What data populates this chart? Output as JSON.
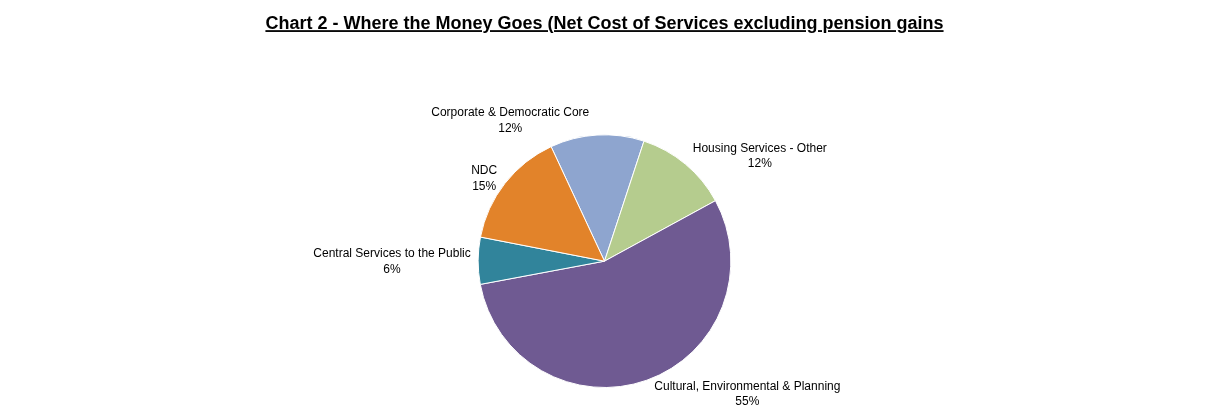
{
  "chart_data": {
    "type": "pie",
    "title": "Chart 2 - Where the Money Goes (Net Cost of Services excluding pension gains",
    "categories": [
      "Corporate & Democratic Core",
      "Housing Services - Other",
      "Cultural, Environmental & Planning",
      "Central Services to the Public",
      "NDC"
    ],
    "values": [
      12,
      12,
      55,
      6,
      15
    ],
    "value_labels": [
      "12%",
      "12%",
      "55%",
      "6%",
      "15%"
    ],
    "colors": [
      "#8ea5cf",
      "#b5cc8e",
      "#6f5a92",
      "#31849b",
      "#e2832a"
    ],
    "legend": false
  }
}
